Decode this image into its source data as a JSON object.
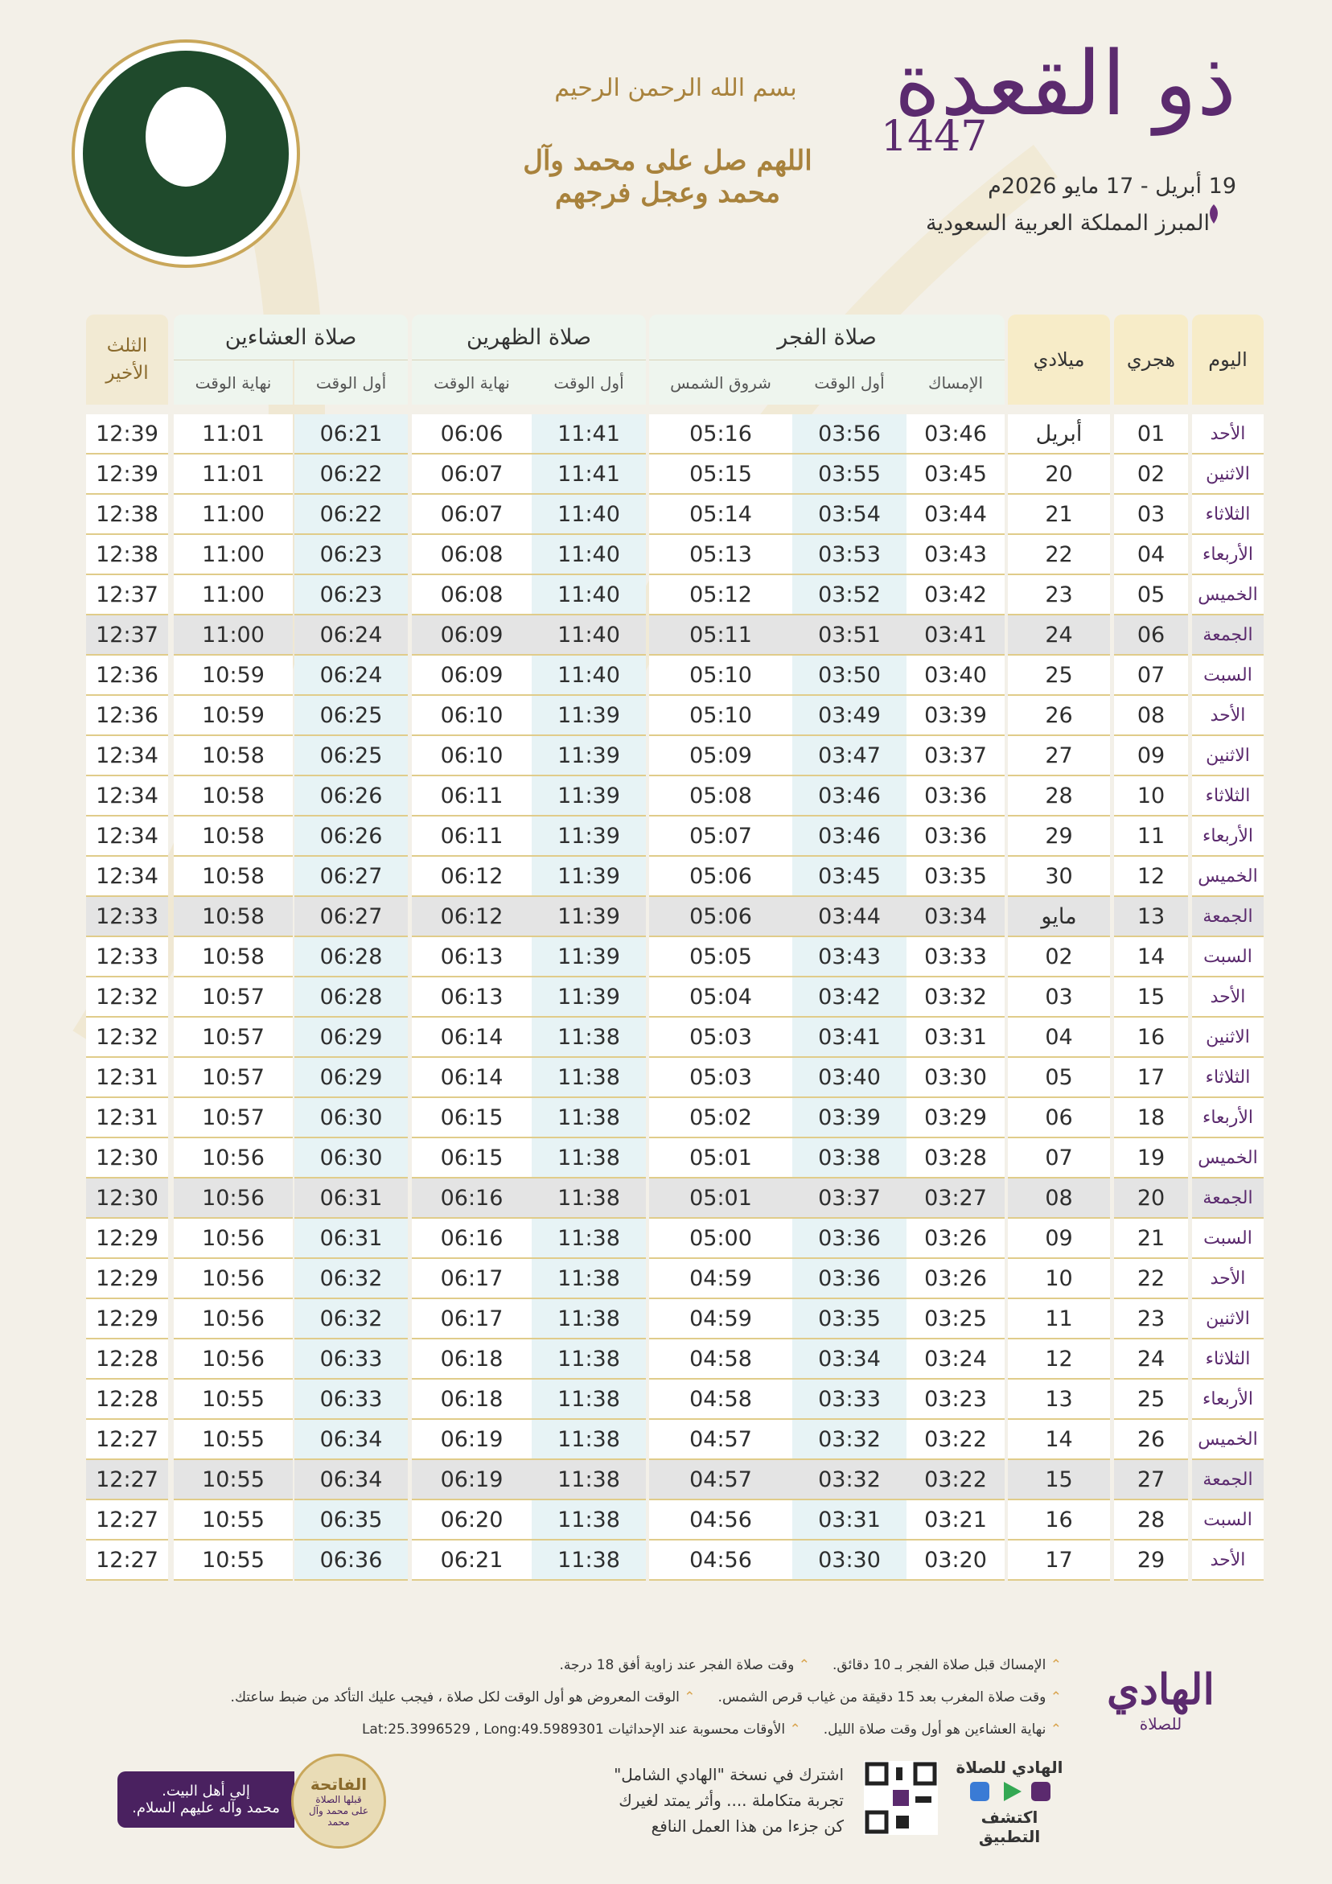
{
  "header": {
    "month": "ذو القعدة",
    "year": "1447",
    "dates": "19 أبريل - 17 مايو 2026م",
    "location": "المبرز المملكة العربية السعودية",
    "basmala": "بسم الله الرحمن الرحيم",
    "salawat": "اللهم صل على محمد وآل محمد وعجل فرجهم"
  },
  "table": {
    "headers": {
      "day": "اليوم",
      "hijri": "هجري",
      "miladi": "ميلادي",
      "fajr": {
        "title": "صلاة الفجر",
        "sub": [
          "الإمساك",
          "أول الوقت",
          "شروق الشمس"
        ]
      },
      "dhuhr": {
        "title": "صلاة الظهرين",
        "sub": [
          "أول الوقت",
          "نهاية الوقت"
        ]
      },
      "isha": {
        "title": "صلاة العشاءين",
        "sub": [
          "أول الوقت",
          "نهاية الوقت"
        ]
      },
      "third": "الثلث الأخير"
    },
    "rows": [
      [
        "الأحد",
        "01",
        "أبريل",
        "03:46",
        "03:56",
        "05:16",
        "11:41",
        "06:06",
        "06:21",
        "11:01",
        "12:39"
      ],
      [
        "الاثنين",
        "02",
        "20",
        "03:45",
        "03:55",
        "05:15",
        "11:41",
        "06:07",
        "06:22",
        "11:01",
        "12:39"
      ],
      [
        "الثلاثاء",
        "03",
        "21",
        "03:44",
        "03:54",
        "05:14",
        "11:40",
        "06:07",
        "06:22",
        "11:00",
        "12:38"
      ],
      [
        "الأربعاء",
        "04",
        "22",
        "03:43",
        "03:53",
        "05:13",
        "11:40",
        "06:08",
        "06:23",
        "11:00",
        "12:38"
      ],
      [
        "الخميس",
        "05",
        "23",
        "03:42",
        "03:52",
        "05:12",
        "11:40",
        "06:08",
        "06:23",
        "11:00",
        "12:37"
      ],
      [
        "الجمعة",
        "06",
        "24",
        "03:41",
        "03:51",
        "05:11",
        "11:40",
        "06:09",
        "06:24",
        "11:00",
        "12:37"
      ],
      [
        "السبت",
        "07",
        "25",
        "03:40",
        "03:50",
        "05:10",
        "11:40",
        "06:09",
        "06:24",
        "10:59",
        "12:36"
      ],
      [
        "الأحد",
        "08",
        "26",
        "03:39",
        "03:49",
        "05:10",
        "11:39",
        "06:10",
        "06:25",
        "10:59",
        "12:36"
      ],
      [
        "الاثنين",
        "09",
        "27",
        "03:37",
        "03:47",
        "05:09",
        "11:39",
        "06:10",
        "06:25",
        "10:58",
        "12:34"
      ],
      [
        "الثلاثاء",
        "10",
        "28",
        "03:36",
        "03:46",
        "05:08",
        "11:39",
        "06:11",
        "06:26",
        "10:58",
        "12:34"
      ],
      [
        "الأربعاء",
        "11",
        "29",
        "03:36",
        "03:46",
        "05:07",
        "11:39",
        "06:11",
        "06:26",
        "10:58",
        "12:34"
      ],
      [
        "الخميس",
        "12",
        "30",
        "03:35",
        "03:45",
        "05:06",
        "11:39",
        "06:12",
        "06:27",
        "10:58",
        "12:34"
      ],
      [
        "الجمعة",
        "13",
        "مايو",
        "03:34",
        "03:44",
        "05:06",
        "11:39",
        "06:12",
        "06:27",
        "10:58",
        "12:33"
      ],
      [
        "السبت",
        "14",
        "02",
        "03:33",
        "03:43",
        "05:05",
        "11:39",
        "06:13",
        "06:28",
        "10:58",
        "12:33"
      ],
      [
        "الأحد",
        "15",
        "03",
        "03:32",
        "03:42",
        "05:04",
        "11:39",
        "06:13",
        "06:28",
        "10:57",
        "12:32"
      ],
      [
        "الاثنين",
        "16",
        "04",
        "03:31",
        "03:41",
        "05:03",
        "11:38",
        "06:14",
        "06:29",
        "10:57",
        "12:32"
      ],
      [
        "الثلاثاء",
        "17",
        "05",
        "03:30",
        "03:40",
        "05:03",
        "11:38",
        "06:14",
        "06:29",
        "10:57",
        "12:31"
      ],
      [
        "الأربعاء",
        "18",
        "06",
        "03:29",
        "03:39",
        "05:02",
        "11:38",
        "06:15",
        "06:30",
        "10:57",
        "12:31"
      ],
      [
        "الخميس",
        "19",
        "07",
        "03:28",
        "03:38",
        "05:01",
        "11:38",
        "06:15",
        "06:30",
        "10:56",
        "12:30"
      ],
      [
        "الجمعة",
        "20",
        "08",
        "03:27",
        "03:37",
        "05:01",
        "11:38",
        "06:16",
        "06:31",
        "10:56",
        "12:30"
      ],
      [
        "السبت",
        "21",
        "09",
        "03:26",
        "03:36",
        "05:00",
        "11:38",
        "06:16",
        "06:31",
        "10:56",
        "12:29"
      ],
      [
        "الأحد",
        "22",
        "10",
        "03:26",
        "03:36",
        "04:59",
        "11:38",
        "06:17",
        "06:32",
        "10:56",
        "12:29"
      ],
      [
        "الاثنين",
        "23",
        "11",
        "03:25",
        "03:35",
        "04:59",
        "11:38",
        "06:17",
        "06:32",
        "10:56",
        "12:29"
      ],
      [
        "الثلاثاء",
        "24",
        "12",
        "03:24",
        "03:34",
        "04:58",
        "11:38",
        "06:18",
        "06:33",
        "10:56",
        "12:28"
      ],
      [
        "الأربعاء",
        "25",
        "13",
        "03:23",
        "03:33",
        "04:58",
        "11:38",
        "06:18",
        "06:33",
        "10:55",
        "12:28"
      ],
      [
        "الخميس",
        "26",
        "14",
        "03:22",
        "03:32",
        "04:57",
        "11:38",
        "06:19",
        "06:34",
        "10:55",
        "12:27"
      ],
      [
        "الجمعة",
        "27",
        "15",
        "03:22",
        "03:32",
        "04:57",
        "11:38",
        "06:19",
        "06:34",
        "10:55",
        "12:27"
      ],
      [
        "السبت",
        "28",
        "16",
        "03:21",
        "03:31",
        "04:56",
        "11:38",
        "06:20",
        "06:35",
        "10:55",
        "12:27"
      ],
      [
        "الأحد",
        "29",
        "17",
        "03:20",
        "03:30",
        "04:56",
        "11:38",
        "06:21",
        "06:36",
        "10:55",
        "12:27"
      ]
    ]
  },
  "notes": [
    "الإمساك قبل صلاة الفجر بـ 10 دقائق.",
    "وقت صلاة الفجر عند زاوية أفق 18 درجة.",
    "وقت صلاة المغرب بعد 15 دقيقة من غياب قرص الشمس.",
    "الوقت المعروض هو أول الوقت لكل صلاة ، فيجب عليك التأكد من ضبط ساعتك.",
    "نهاية العشاءين هو أول وقت صلاة الليل.",
    "الأوقات محسوبة عند الإحداثيات Lat:25.3996529 , Long:49.5989301"
  ],
  "footer": {
    "logo": "الهادي",
    "logo_sub": "للصلاة",
    "app_name": "الهادي للصلاة",
    "app_cta": "اكتشف التطبيق",
    "subscribe": "اشترك في نسخة \"الهادي الشامل\"",
    "subscribe_line2": "تجربة متكاملة .... وأثر يمتد لغيرك",
    "subscribe_line3": "كن جزءا من هذا العمل النافع",
    "fatiha": "الفاتحة",
    "fatiha_sub": "قبلها الصلاة على محمد وآل محمد",
    "dedication": "إلى أهل البيت.",
    "dedication_line2": "محمد وآله عليهم السلام."
  }
}
